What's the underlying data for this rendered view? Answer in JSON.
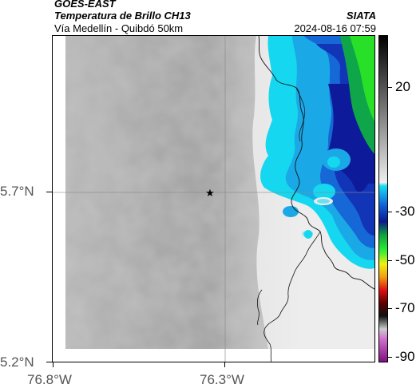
{
  "header": {
    "satellite": "GOES-EAST",
    "product": "Temperatura de Brillo CH13",
    "route": "Vía Medellín - Quibdó 50km",
    "org": "SIATA",
    "timestamp": "2024-08-16 07:59"
  },
  "axes": {
    "lat_labels": [
      "5.7°N",
      "5.2°N"
    ],
    "lon_labels": [
      "76.8°W",
      "76.3°W"
    ]
  },
  "colorbar": {
    "labels": [
      "20",
      "-30",
      "-50",
      "-70",
      "-90"
    ]
  },
  "marker": {
    "symbol": "★"
  }
}
